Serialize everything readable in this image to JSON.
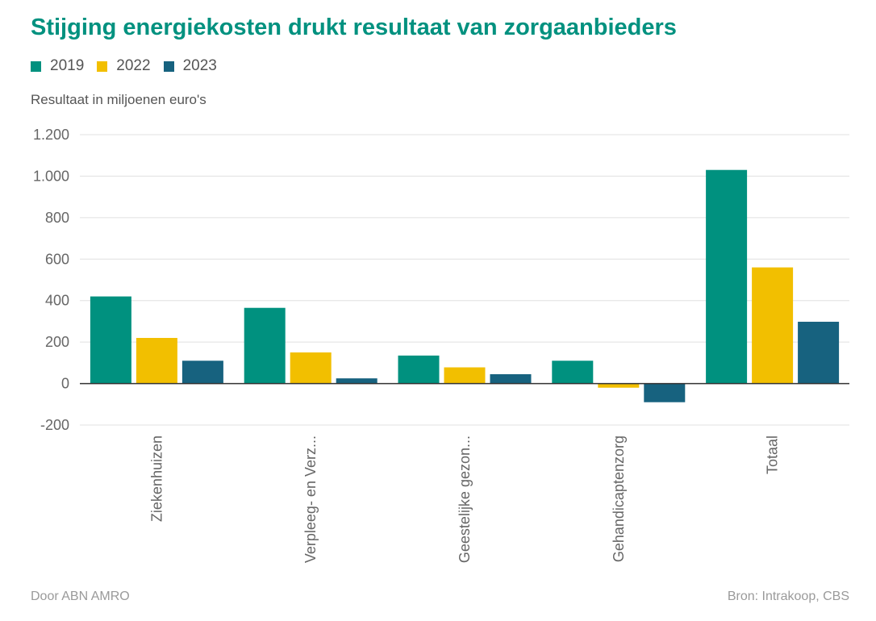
{
  "title": "Stijging energiekosten drukt resultaat van zorgaanbieders",
  "legend": [
    "2019",
    "2022",
    "2023"
  ],
  "colors": {
    "2019": "#00917f",
    "2022": "#f2bf00",
    "2023": "#17627f"
  },
  "ylabel_text": "Resultaat in miljoenen euro's",
  "credit": "Door ABN AMRO",
  "source": "Bron: Intrakoop, CBS",
  "chart_data": {
    "type": "bar",
    "title": "Stijging energiekosten drukt resultaat van zorgaanbieders",
    "ylabel": "Resultaat in miljoenen euro's",
    "xlabel": "",
    "categories": [
      "Ziekenhuizen",
      "Verpleeg- en Verz...",
      "Geestelijke gezon...",
      "Gehandicaptenzorg",
      "Totaal"
    ],
    "series": [
      {
        "name": "2019",
        "values": [
          420,
          365,
          135,
          110,
          1030
        ]
      },
      {
        "name": "2022",
        "values": [
          220,
          150,
          78,
          -20,
          560
        ]
      },
      {
        "name": "2023",
        "values": [
          110,
          25,
          45,
          -90,
          298
        ]
      }
    ],
    "ylim": [
      -200,
      1200
    ],
    "yticks": [
      -200,
      0,
      200,
      400,
      600,
      800,
      "1.000",
      "1.200"
    ],
    "ytick_labels": [
      "-200",
      "0",
      "200",
      "400",
      "600",
      "800",
      "1.000",
      "1.200"
    ],
    "grid": true,
    "legend_position": "top-left"
  }
}
